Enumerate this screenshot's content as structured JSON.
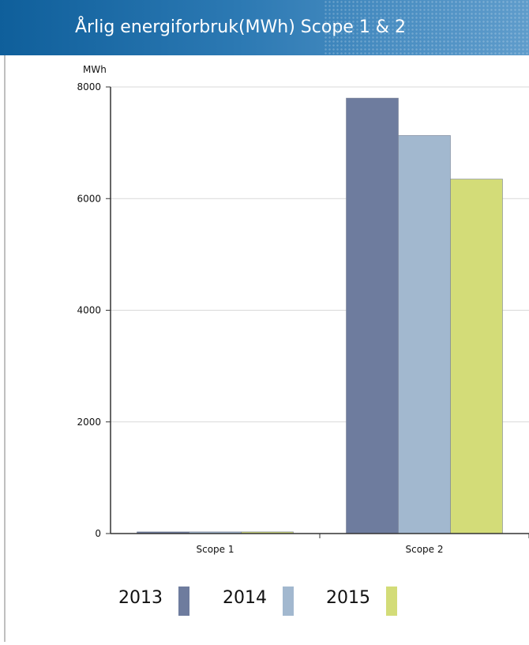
{
  "header": {
    "title": "Årlig energiforbruk(MWh) Scope 1 & 2"
  },
  "chart_data": {
    "type": "bar",
    "title": "Årlig energiforbruk(MWh) Scope 1 & 2",
    "xlabel": "",
    "ylabel": "MWh",
    "ylim": [
      0,
      8000
    ],
    "yticks": [
      "0",
      "2000",
      "4000",
      "6000",
      "8000"
    ],
    "categories": [
      "Scope 1",
      "Scope 2"
    ],
    "grid": true,
    "legend_placement": "bottom",
    "series": [
      {
        "name": "2013",
        "color": "#6e7c9e",
        "values": [
          30,
          7800
        ]
      },
      {
        "name": "2014",
        "color": "#a2b8cf",
        "values": [
          30,
          7130
        ]
      },
      {
        "name": "2015",
        "color": "#d3dc78",
        "values": [
          30,
          6350
        ]
      }
    ]
  }
}
